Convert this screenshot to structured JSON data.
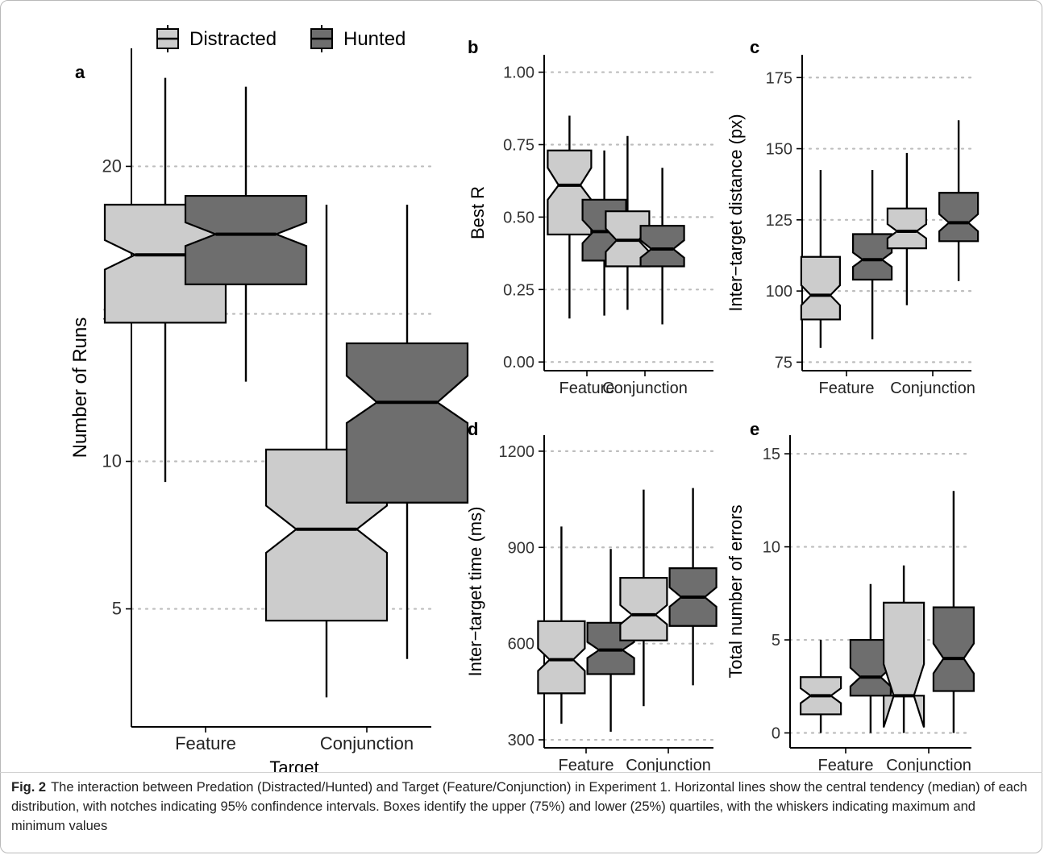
{
  "colors": {
    "distracted": "#cccccc",
    "hunted": "#6e6e6e",
    "grid": "#bdbdbd",
    "stroke": "#000000"
  },
  "legend": {
    "items": [
      {
        "label": "Distracted",
        "color": "#cccccc"
      },
      {
        "label": "Hunted",
        "color": "#6e6e6e"
      }
    ]
  },
  "chart_data": [
    {
      "panel": "a",
      "type": "boxplot",
      "notched": true,
      "categories": [
        "Feature",
        "Conjunction"
      ],
      "xlabel": "Target",
      "ylabel": "Number of Runs",
      "ylim": [
        1,
        24
      ],
      "yticks": [
        5,
        10,
        15,
        20
      ],
      "grid": "horizontal dotted at y ticks",
      "series": [
        {
          "name": "Distracted",
          "boxes": [
            {
              "min": 9.3,
              "q1": 14.7,
              "median": 17.0,
              "q3": 18.7,
              "max": 23.0,
              "notch_low": 16.5,
              "notch_high": 17.5
            },
            {
              "min": 2.0,
              "q1": 4.6,
              "median": 7.7,
              "q3": 10.4,
              "max": 18.7,
              "notch_low": 6.9,
              "notch_high": 8.5
            }
          ]
        },
        {
          "name": "Hunted",
          "boxes": [
            {
              "min": 12.7,
              "q1": 16.0,
              "median": 17.7,
              "q3": 19.0,
              "max": 22.7,
              "notch_low": 17.3,
              "notch_high": 18.1
            },
            {
              "min": 3.3,
              "q1": 8.6,
              "median": 12.0,
              "q3": 14.0,
              "max": 18.7,
              "notch_low": 11.3,
              "notch_high": 12.9
            }
          ]
        }
      ]
    },
    {
      "panel": "b",
      "type": "boxplot",
      "notched": true,
      "categories": [
        "Feature",
        "Conjunction"
      ],
      "xlabel": "",
      "ylabel": "Best R",
      "ylim": [
        -0.03,
        1.06
      ],
      "yticks": [
        "0.00",
        "0.25",
        "0.50",
        "0.75",
        "1.00"
      ],
      "grid": "horizontal dotted at y ticks",
      "series": [
        {
          "name": "Distracted",
          "boxes": [
            {
              "min": 0.15,
              "q1": 0.44,
              "median": 0.61,
              "q3": 0.73,
              "max": 0.85,
              "notch_low": 0.56,
              "notch_high": 0.67
            },
            {
              "min": 0.18,
              "q1": 0.33,
              "median": 0.42,
              "q3": 0.52,
              "max": 0.78,
              "notch_low": 0.38,
              "notch_high": 0.46
            }
          ]
        },
        {
          "name": "Hunted",
          "boxes": [
            {
              "min": 0.16,
              "q1": 0.35,
              "median": 0.45,
              "q3": 0.56,
              "max": 0.73,
              "notch_low": 0.41,
              "notch_high": 0.49
            },
            {
              "min": 0.13,
              "q1": 0.33,
              "median": 0.39,
              "q3": 0.47,
              "max": 0.67,
              "notch_low": 0.36,
              "notch_high": 0.42
            }
          ]
        }
      ]
    },
    {
      "panel": "c",
      "type": "boxplot",
      "notched": true,
      "categories": [
        "Feature",
        "Conjunction"
      ],
      "xlabel": "",
      "ylabel": "Inter−target distance (px)",
      "ylim": [
        72,
        183
      ],
      "yticks": [
        75,
        100,
        125,
        150,
        175
      ],
      "grid": "horizontal dotted at y ticks",
      "series": [
        {
          "name": "Distracted",
          "boxes": [
            {
              "min": 80,
              "q1": 90,
              "median": 98.5,
              "q3": 112,
              "max": 142.5,
              "notch_low": 95,
              "notch_high": 102
            },
            {
              "min": 95,
              "q1": 115,
              "median": 121,
              "q3": 129,
              "max": 148.5,
              "notch_low": 118.5,
              "notch_high": 123.5
            }
          ]
        },
        {
          "name": "Hunted",
          "boxes": [
            {
              "min": 83,
              "q1": 104,
              "median": 111,
              "q3": 120,
              "max": 142.5,
              "notch_low": 108.5,
              "notch_high": 113.5
            },
            {
              "min": 103.5,
              "q1": 117.5,
              "median": 124,
              "q3": 134.5,
              "max": 160,
              "notch_low": 121,
              "notch_high": 127
            }
          ]
        }
      ]
    },
    {
      "panel": "d",
      "type": "boxplot",
      "notched": true,
      "categories": [
        "Feature",
        "Conjunction"
      ],
      "xlabel": "",
      "ylabel": "Inter−target time (ms)",
      "ylim": [
        275,
        1250
      ],
      "yticks": [
        300,
        600,
        900,
        1200
      ],
      "grid": "horizontal dotted at y ticks",
      "series": [
        {
          "name": "Distracted",
          "boxes": [
            {
              "min": 350,
              "q1": 445,
              "median": 550,
              "q3": 670,
              "max": 965,
              "notch_low": 515,
              "notch_high": 585
            },
            {
              "min": 405,
              "q1": 610,
              "median": 690,
              "q3": 805,
              "max": 1080,
              "notch_low": 660,
              "notch_high": 720
            }
          ]
        },
        {
          "name": "Hunted",
          "boxes": [
            {
              "min": 325,
              "q1": 505,
              "median": 580,
              "q3": 665,
              "max": 895,
              "notch_low": 555,
              "notch_high": 605
            },
            {
              "min": 470,
              "q1": 655,
              "median": 745,
              "q3": 835,
              "max": 1085,
              "notch_low": 715,
              "notch_high": 775
            }
          ]
        }
      ]
    },
    {
      "panel": "e",
      "type": "boxplot",
      "notched": true,
      "categories": [
        "Feature",
        "Conjunction"
      ],
      "xlabel": "",
      "ylabel": "Total number of errors",
      "ylim": [
        -0.8,
        16
      ],
      "yticks": [
        0,
        5,
        10,
        15
      ],
      "grid": "horizontal dotted at y ticks",
      "series": [
        {
          "name": "Distracted",
          "boxes": [
            {
              "min": 0,
              "q1": 1,
              "median": 2,
              "q3": 3,
              "max": 5,
              "notch_low": 1.6,
              "notch_high": 2.4
            },
            {
              "min": 0,
              "q1": 2,
              "median": 2,
              "q3": 7,
              "max": 9,
              "notch_low": 0.3,
              "notch_high": 3.7
            }
          ]
        },
        {
          "name": "Hunted",
          "boxes": [
            {
              "min": 0,
              "q1": 2,
              "median": 3,
              "q3": 5,
              "max": 8,
              "notch_low": 2.5,
              "notch_high": 3.5
            },
            {
              "min": 0,
              "q1": 2.25,
              "median": 4,
              "q3": 6.75,
              "max": 13,
              "notch_low": 3.2,
              "notch_high": 4.8
            }
          ]
        }
      ]
    }
  ],
  "caption": {
    "label": "Fig. 2",
    "text": "The interaction between Predation (Distracted/Hunted) and Target (Feature/Conjunction) in Experiment 1. Horizontal lines show the central tendency (median) of each distribution, with notches indicating 95% confindence intervals. Boxes identify the upper (75%) and lower (25%) quartiles, with the whiskers indicating maximum and minimum values"
  }
}
